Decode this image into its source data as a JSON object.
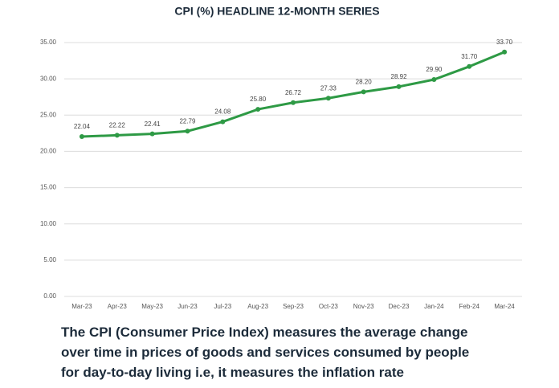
{
  "chart_data": {
    "type": "line",
    "title": "CPI (%)  HEADLINE 12-MONTH SERIES",
    "categories": [
      "Mar-23",
      "Apr-23",
      "May-23",
      "Jun-23",
      "Jul-23",
      "Aug-23",
      "Sep-23",
      "Oct-23",
      "Nov-23",
      "Dec-23",
      "Jan-24",
      "Feb-24",
      "Mar-24"
    ],
    "values": [
      22.04,
      22.22,
      22.41,
      22.79,
      24.08,
      25.8,
      26.72,
      27.33,
      28.2,
      28.92,
      29.9,
      31.7,
      33.7
    ],
    "value_labels": [
      "22.04",
      "22.22",
      "22.41",
      "22.79",
      "24.08",
      "25.80",
      "26.72",
      "27.33",
      "28.20",
      "28.92",
      "29.90",
      "31.70",
      "33.70"
    ],
    "color": "#2e9a45",
    "ylim": [
      0,
      35
    ],
    "yticks": [
      {
        "value": 0,
        "label": "0.00"
      },
      {
        "value": 5,
        "label": "5.00"
      },
      {
        "value": 10,
        "label": "10.00"
      },
      {
        "value": 15,
        "label": "15.00"
      },
      {
        "value": 20,
        "label": "20.00"
      },
      {
        "value": 25,
        "label": "25.00"
      },
      {
        "value": 30,
        "label": "30.00"
      },
      {
        "value": 35,
        "label": "35.00"
      }
    ],
    "grid": true
  },
  "caption": [
    "The CPI (Consumer Price Index) measures the average change",
    "over time in prices of goods and services consumed by people",
    "for day-to-day living i.e, it measures the inflation rate"
  ]
}
